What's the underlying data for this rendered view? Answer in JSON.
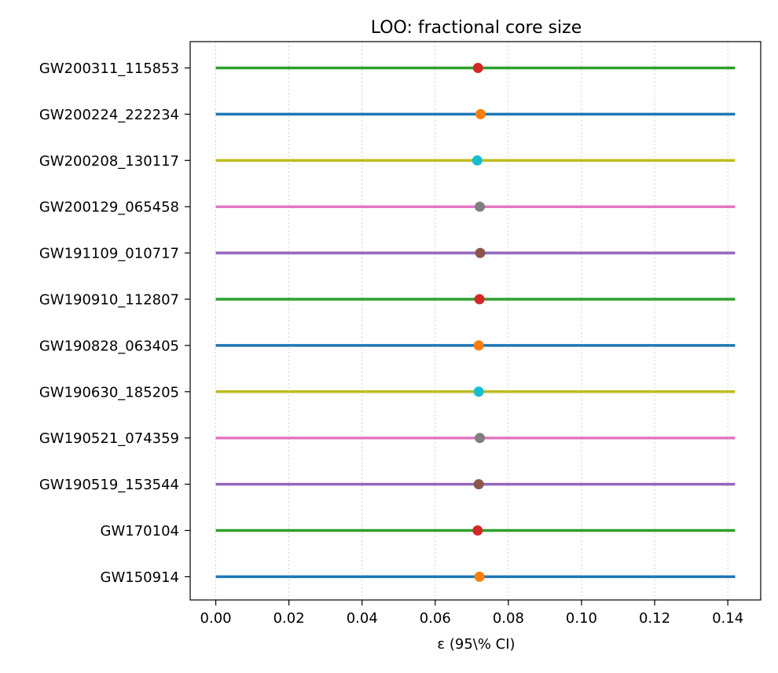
{
  "chart_data": {
    "type": "errorbar-forest",
    "title": "LOO: fractional core size",
    "xlabel": "ε (95\\% CI)",
    "xlim": [
      -0.007,
      0.149
    ],
    "x_ticks": [
      {
        "value": 0.0,
        "label": "0.00"
      },
      {
        "value": 0.02,
        "label": "0.02"
      },
      {
        "value": 0.04,
        "label": "0.04"
      },
      {
        "value": 0.06,
        "label": "0.06"
      },
      {
        "value": 0.08,
        "label": "0.08"
      },
      {
        "value": 0.1,
        "label": "0.10"
      },
      {
        "value": 0.12,
        "label": "0.12"
      },
      {
        "value": 0.14,
        "label": "0.14"
      }
    ],
    "x_grid": true,
    "rows": [
      {
        "label": "GW200311_115853",
        "low": 0.0,
        "high": 0.142,
        "center": 0.0717,
        "line_color": "#2ca02c",
        "point_color": "#d62728"
      },
      {
        "label": "GW200224_222234",
        "low": 0.0,
        "high": 0.142,
        "center": 0.0724,
        "line_color": "#1f77b4",
        "point_color": "#ff7f0e"
      },
      {
        "label": "GW200208_130117",
        "low": 0.0,
        "high": 0.142,
        "center": 0.0715,
        "line_color": "#bcbd22",
        "point_color": "#17becf"
      },
      {
        "label": "GW200129_065458",
        "low": 0.0,
        "high": 0.142,
        "center": 0.0722,
        "line_color": "#e377c2",
        "point_color": "#7f7f7f"
      },
      {
        "label": "GW191109_010717",
        "low": 0.0,
        "high": 0.142,
        "center": 0.0723,
        "line_color": "#9467bd",
        "point_color": "#8c564b"
      },
      {
        "label": "GW190910_112807",
        "low": 0.0,
        "high": 0.142,
        "center": 0.0721,
        "line_color": "#2ca02c",
        "point_color": "#d62728"
      },
      {
        "label": "GW190828_063405",
        "low": 0.0,
        "high": 0.142,
        "center": 0.0719,
        "line_color": "#1f77b4",
        "point_color": "#ff7f0e"
      },
      {
        "label": "GW190630_185205",
        "low": 0.0,
        "high": 0.142,
        "center": 0.0719,
        "line_color": "#bcbd22",
        "point_color": "#17becf"
      },
      {
        "label": "GW190521_074359",
        "low": 0.0,
        "high": 0.142,
        "center": 0.0722,
        "line_color": "#e377c2",
        "point_color": "#7f7f7f"
      },
      {
        "label": "GW190519_153544",
        "low": 0.0,
        "high": 0.142,
        "center": 0.0719,
        "line_color": "#9467bd",
        "point_color": "#8c564b"
      },
      {
        "label": "GW170104",
        "low": 0.0,
        "high": 0.142,
        "center": 0.0716,
        "line_color": "#2ca02c",
        "point_color": "#d62728"
      },
      {
        "label": "GW150914",
        "low": 0.0,
        "high": 0.142,
        "center": 0.0721,
        "line_color": "#1f77b4",
        "point_color": "#ff7f0e"
      }
    ]
  }
}
